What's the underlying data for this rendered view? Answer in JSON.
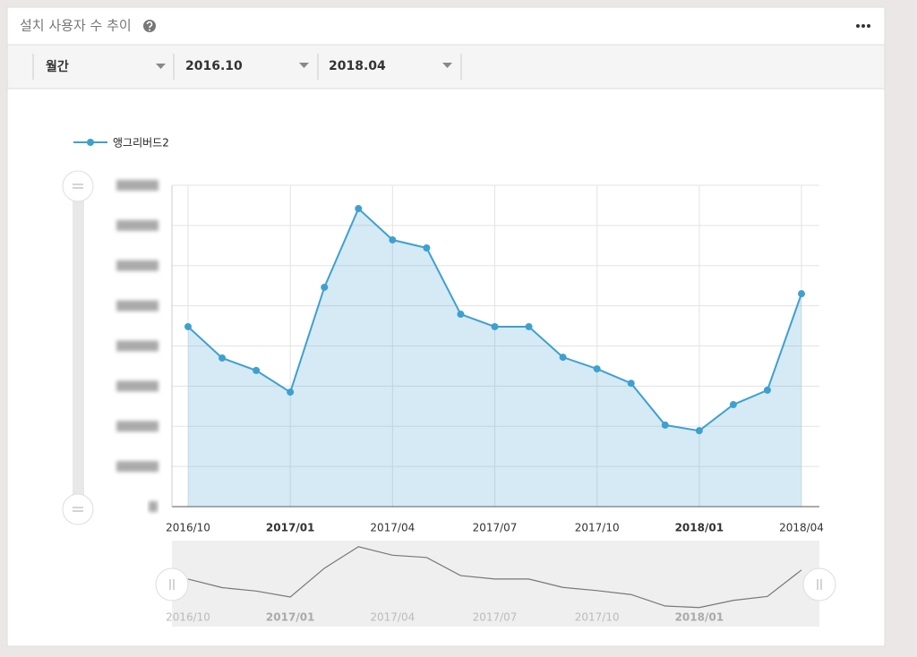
{
  "header": {
    "title": "설치 사용자 수 추이"
  },
  "filters": [
    "월간",
    "2016.10",
    "2018.04"
  ],
  "chart_data": {
    "type": "line",
    "categories": [
      "2016/10",
      null,
      null,
      "2017/01",
      null,
      null,
      "2017/04",
      null,
      null,
      "2017/07",
      null,
      null,
      "2017/10",
      null,
      null,
      "2018/01",
      null,
      null,
      "2018/04"
    ],
    "series": [
      {
        "name": "앵그리버드2",
        "color": "#3fa0cf",
        "values": [
          4.48,
          3.7,
          3.39,
          2.85,
          5.46,
          7.42,
          6.64,
          6.44,
          4.79,
          4.48,
          4.48,
          3.72,
          3.43,
          3.07,
          2.03,
          1.89,
          2.54,
          2.9,
          5.3
        ]
      }
    ],
    "ylim": [
      0,
      8
    ],
    "yticks": [
      0,
      1,
      2,
      3,
      4,
      5,
      6,
      7,
      8
    ],
    "grid": true
  }
}
